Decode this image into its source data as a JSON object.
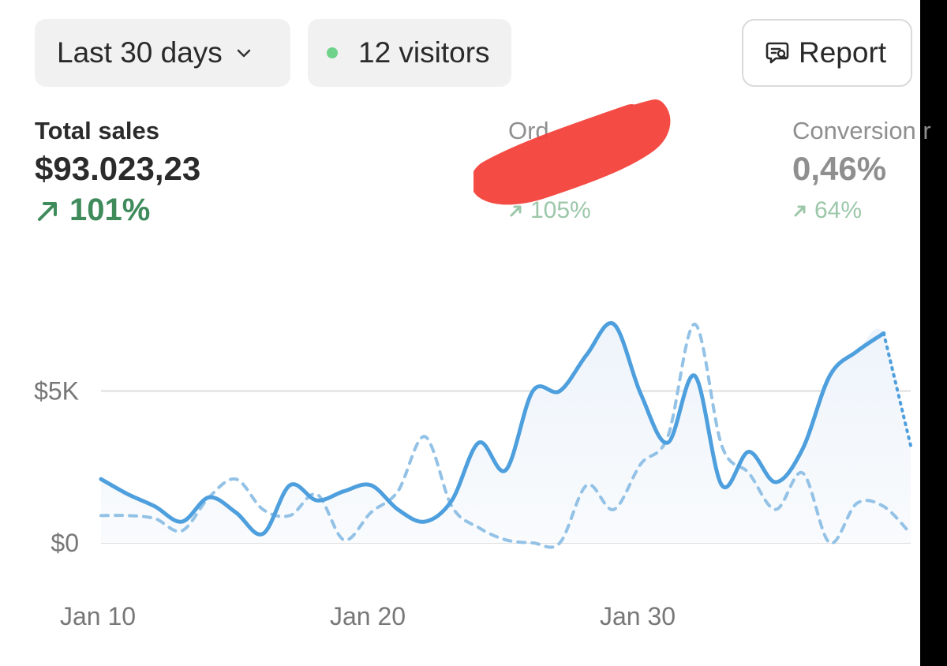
{
  "toolbar": {
    "range_label": "Last 30 days",
    "visitors_label": "12 visitors",
    "report_label": "Report"
  },
  "metrics": [
    {
      "label": "Total sales",
      "value": "$93.023,23",
      "change": "101%"
    },
    {
      "label": "Ord",
      "value": "",
      "change": "105%"
    },
    {
      "label": "Conversion r",
      "value": "0,46%",
      "change": "64%"
    }
  ],
  "colors": {
    "accent": "#4e9fdd",
    "positive": "#3f8b5c",
    "live_dot": "#6fd28a",
    "redaction": "#f4433b"
  },
  "chart_data": {
    "type": "line",
    "x_ticks": [
      "Jan 10",
      "Jan 20",
      "Jan 30"
    ],
    "y_ticks": [
      "$0",
      "$5K"
    ],
    "ylim": [
      0,
      8000
    ],
    "x": [
      "Jan 10",
      "Jan 11",
      "Jan 12",
      "Jan 13",
      "Jan 14",
      "Jan 15",
      "Jan 16",
      "Jan 17",
      "Jan 18",
      "Jan 19",
      "Jan 20",
      "Jan 21",
      "Jan 22",
      "Jan 23",
      "Jan 24",
      "Jan 25",
      "Jan 26",
      "Jan 27",
      "Jan 28",
      "Jan 29",
      "Jan 30",
      "Jan 31",
      "Feb 1",
      "Feb 2",
      "Feb 3",
      "Feb 4",
      "Feb 5",
      "Feb 6",
      "Feb 7",
      "Feb 8",
      "Feb 9"
    ],
    "series": [
      {
        "style": "solid",
        "values": [
          2100,
          1600,
          1200,
          700,
          1500,
          1000,
          300,
          1900,
          1400,
          1700,
          1900,
          1100,
          700,
          1400,
          3300,
          2400,
          5000,
          5000,
          6200,
          7200,
          4900,
          3300,
          5500,
          1900,
          3000,
          2000,
          3100,
          5500,
          6300,
          6900,
          3200
        ],
        "partial_from": 29
      },
      {
        "style": "dashed",
        "values": [
          900,
          900,
          800,
          400,
          1500,
          2100,
          1100,
          900,
          1600,
          100,
          1000,
          1700,
          3500,
          1200,
          500,
          100,
          0,
          0,
          1900,
          1100,
          2600,
          3500,
          7200,
          3200,
          2300,
          1100,
          2300,
          0,
          1300,
          1200,
          300
        ]
      }
    ],
    "grid": true,
    "legend": "none"
  }
}
